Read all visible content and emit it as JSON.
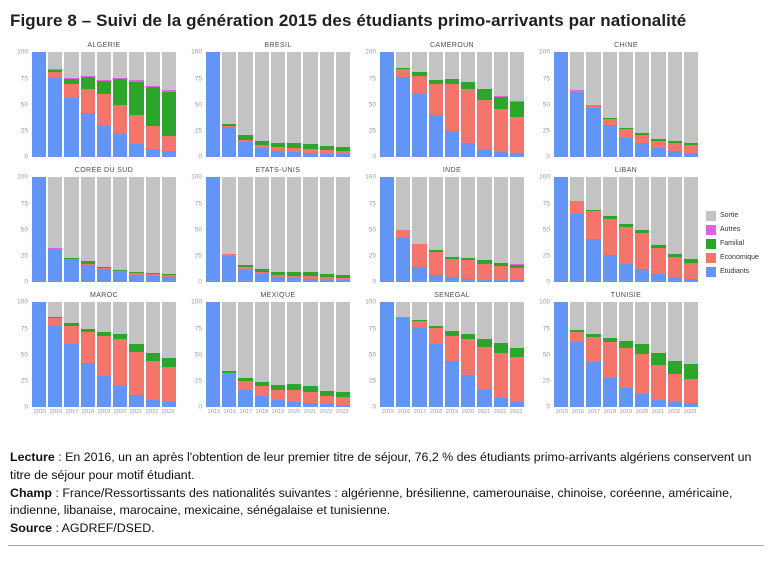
{
  "figure": {
    "title": "Figure 8 – Suivi de la génération 2015 des étudiants primo-arrivants par nationalité"
  },
  "legend": {
    "items": [
      {
        "label": "Sortie",
        "color": "#c3c3c3"
      },
      {
        "label": "Autres",
        "color": "#e35fe3"
      },
      {
        "label": "Familial",
        "color": "#2ba62b"
      },
      {
        "label": "Economique",
        "color": "#f4756c"
      },
      {
        "label": "Etudiants",
        "color": "#6295f6"
      }
    ]
  },
  "chart_data": {
    "type": "bar",
    "stacked": true,
    "unit": "percent of 2015 cohort",
    "ylim": [
      0,
      100
    ],
    "yticks": [
      100,
      75,
      50,
      25,
      0
    ],
    "grid": false,
    "legend_position": "right",
    "categories": [
      "2015",
      "2016",
      "2017",
      "2018",
      "2019",
      "2020",
      "2021",
      "2022",
      "2023"
    ],
    "series_order_bottom_to_top": [
      "Etudiants",
      "Economique",
      "Familial",
      "Autres",
      "Sortie"
    ],
    "sortie_is_remainder_to_100": true,
    "panels": [
      {
        "title": "ALGERIE",
        "etudiants": [
          100,
          76,
          57,
          42,
          30,
          22,
          13,
          8,
          6
        ],
        "economique": [
          0,
          5,
          13,
          23,
          30,
          28,
          27,
          22,
          14
        ],
        "familial": [
          0,
          2,
          5,
          12,
          13,
          25,
          32,
          37,
          42
        ],
        "autres": [
          0,
          1,
          1,
          1,
          1,
          1,
          2,
          1,
          2
        ]
      },
      {
        "title": "BRESIL",
        "etudiants": [
          100,
          29,
          15,
          9,
          6,
          5,
          4,
          3,
          3
        ],
        "economique": [
          0,
          1,
          2,
          3,
          4,
          4,
          4,
          4,
          3
        ],
        "familial": [
          0,
          2,
          4,
          4,
          4,
          5,
          5,
          4,
          4
        ],
        "autres": [
          0,
          0,
          0,
          0,
          0,
          0,
          0,
          0,
          0
        ]
      },
      {
        "title": "CAMEROUN",
        "etudiants": [
          100,
          77,
          60,
          40,
          25,
          14,
          8,
          5,
          4
        ],
        "economique": [
          0,
          7,
          18,
          30,
          45,
          51,
          47,
          41,
          35
        ],
        "familial": [
          0,
          1,
          3,
          4,
          5,
          7,
          10,
          12,
          14
        ],
        "autres": [
          0,
          0,
          0,
          0,
          0,
          0,
          0,
          1,
          1
        ]
      },
      {
        "title": "CHINE",
        "etudiants": [
          100,
          62,
          47,
          31,
          19,
          14,
          9,
          6,
          4
        ],
        "economique": [
          0,
          1,
          3,
          6,
          8,
          7,
          7,
          8,
          8
        ],
        "familial": [
          0,
          0,
          0,
          1,
          1,
          2,
          2,
          2,
          2
        ],
        "autres": [
          0,
          1,
          0,
          0,
          0,
          0,
          0,
          0,
          0
        ]
      },
      {
        "title": "COREE DU SUD",
        "etudiants": [
          100,
          32,
          22,
          17,
          13,
          10,
          7,
          6,
          5
        ],
        "economique": [
          0,
          0,
          0,
          1,
          1,
          1,
          2,
          2,
          2
        ],
        "familial": [
          0,
          0,
          1,
          2,
          1,
          1,
          1,
          1,
          1
        ],
        "autres": [
          0,
          1,
          0,
          0,
          0,
          0,
          0,
          0,
          0
        ]
      },
      {
        "title": "ETATS-UNIS",
        "etudiants": [
          100,
          25,
          12,
          8,
          5,
          4,
          3,
          2,
          2
        ],
        "economique": [
          0,
          2,
          3,
          2,
          2,
          2,
          3,
          3,
          2
        ],
        "familial": [
          0,
          0,
          2,
          3,
          3,
          4,
          4,
          3,
          3
        ],
        "autres": [
          0,
          0,
          0,
          0,
          0,
          0,
          0,
          0,
          0
        ]
      },
      {
        "title": "INDE",
        "etudiants": [
          100,
          42,
          15,
          7,
          4,
          3,
          2,
          2,
          2
        ],
        "economique": [
          0,
          8,
          22,
          22,
          18,
          18,
          16,
          14,
          12
        ],
        "familial": [
          0,
          0,
          0,
          2,
          2,
          2,
          3,
          3,
          3
        ],
        "autres": [
          0,
          0,
          0,
          0,
          0,
          0,
          0,
          0,
          1
        ]
      },
      {
        "title": "LIBAN",
        "etudiants": [
          100,
          65,
          41,
          26,
          18,
          13,
          8,
          5,
          3
        ],
        "economique": [
          0,
          13,
          27,
          34,
          35,
          34,
          25,
          19,
          16
        ],
        "familial": [
          0,
          0,
          1,
          3,
          3,
          3,
          3,
          3,
          3
        ],
        "autres": [
          0,
          0,
          0,
          0,
          0,
          0,
          0,
          0,
          0
        ]
      },
      {
        "title": "MAROC",
        "etudiants": [
          100,
          78,
          60,
          42,
          30,
          20,
          12,
          7,
          5
        ],
        "economique": [
          0,
          7,
          18,
          30,
          38,
          45,
          41,
          37,
          34
        ],
        "familial": [
          0,
          1,
          2,
          3,
          4,
          5,
          7,
          8,
          8
        ],
        "autres": [
          0,
          0,
          0,
          0,
          0,
          0,
          0,
          0,
          0
        ]
      },
      {
        "title": "MEXIQUE",
        "etudiants": [
          100,
          32,
          17,
          11,
          7,
          5,
          4,
          3,
          2
        ],
        "economique": [
          0,
          1,
          8,
          9,
          10,
          12,
          11,
          8,
          8
        ],
        "familial": [
          0,
          2,
          3,
          4,
          4,
          5,
          5,
          5,
          5
        ],
        "autres": [
          0,
          0,
          0,
          0,
          0,
          0,
          0,
          0,
          0
        ]
      },
      {
        "title": "SENEGAL",
        "etudiants": [
          100,
          85,
          76,
          60,
          44,
          31,
          18,
          9,
          5
        ],
        "economique": [
          0,
          1,
          6,
          16,
          24,
          34,
          40,
          43,
          43
        ],
        "familial": [
          0,
          0,
          1,
          2,
          5,
          5,
          7,
          9,
          9
        ],
        "autres": [
          0,
          0,
          0,
          0,
          0,
          0,
          0,
          0,
          0
        ]
      },
      {
        "title": "TUNISIE",
        "etudiants": [
          100,
          62,
          43,
          28,
          19,
          13,
          7,
          5,
          4
        ],
        "economique": [
          0,
          10,
          24,
          34,
          38,
          38,
          33,
          27,
          23
        ],
        "familial": [
          0,
          2,
          3,
          4,
          6,
          9,
          12,
          12,
          14
        ],
        "autres": [
          0,
          0,
          0,
          0,
          0,
          0,
          0,
          0,
          0
        ]
      }
    ]
  },
  "footer": {
    "lecture_label": "Lecture",
    "lecture_text": " : En 2016, un an après l'obtention de leur premier titre de séjour, 76,2 % des étudiants primo-arrivants algériens conservent un titre de séjour pour motif étudiant.",
    "champ_label": "Champ",
    "champ_text": " : France/Ressortissants des nationalités suivantes : algérienne, brésilienne, camerounaise, chinoise, coréenne, américaine, indienne, libanaise, marocaine, mexicaine, sénégalaise et tunisienne.",
    "source_label": "Source",
    "source_text": " : AGDREF/DSED."
  }
}
